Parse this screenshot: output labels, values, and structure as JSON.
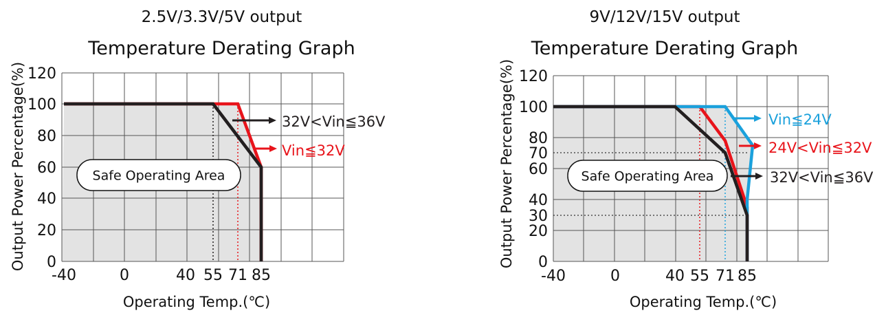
{
  "chart_data": [
    {
      "type": "line",
      "title": "2.5V/3.3V/5V output",
      "subtitle": "Temperature Derating Graph",
      "xlabel": "Operating Temp.(℃)",
      "ylabel": "Output Power Percentage(%)",
      "xlim": [
        -40,
        120
      ],
      "ylim": [
        0,
        120
      ],
      "x_ticks": [
        -40,
        0,
        40,
        55,
        71,
        85
      ],
      "x_tick_labels": [
        "-40",
        "0",
        "40",
        "55",
        "71",
        "85"
      ],
      "y_ticks": [
        0,
        20,
        40,
        60,
        80,
        100,
        120
      ],
      "y_tick_labels": [
        "0",
        "20",
        "40",
        "60",
        "80",
        "100",
        "120"
      ],
      "grid": true,
      "area_label": "Safe Operating Area",
      "series": [
        {
          "name": "Vin≦32V",
          "color": "#e8141b",
          "points": [
            [
              -40,
              100
            ],
            [
              71,
              100
            ],
            [
              85,
              60
            ],
            [
              85,
              0
            ]
          ]
        },
        {
          "name": "32V<Vin≦36V",
          "color": "#231f20",
          "points": [
            [
              -40,
              100
            ],
            [
              55,
              100
            ],
            [
              85,
              60
            ],
            [
              85,
              0
            ]
          ]
        }
      ]
    },
    {
      "type": "line",
      "title": "9V/12V/15V output",
      "subtitle": "Temperature Derating Graph",
      "xlabel": "Operating Temp.(℃)",
      "ylabel": "Output Power Percentage(%)",
      "xlim": [
        -40,
        120
      ],
      "ylim": [
        0,
        120
      ],
      "x_ticks": [
        -40,
        0,
        40,
        55,
        71,
        85
      ],
      "x_tick_labels": [
        "-40",
        "0",
        "40",
        "55",
        "71",
        "85"
      ],
      "y_ticks": [
        0,
        20,
        30,
        40,
        60,
        70,
        80,
        100,
        120
      ],
      "y_tick_labels": [
        "0",
        "20",
        "30",
        "40",
        "60",
        "70",
        "80",
        "100",
        "120"
      ],
      "grid": true,
      "area_label": "Safe Operating Area",
      "series": [
        {
          "name": "Vin≦24V",
          "color": "#1ba1dc",
          "points": [
            [
              -40,
              100
            ],
            [
              71,
              100
            ],
            [
              76,
              75
            ],
            [
              85,
              40
            ],
            [
              85,
              0
            ]
          ]
        },
        {
          "name": "24V<Vin≦32V",
          "color": "#e8141b",
          "points": [
            [
              -40,
              100
            ],
            [
              55,
              100
            ],
            [
              71,
              78
            ],
            [
              85,
              35
            ],
            [
              85,
              0
            ]
          ]
        },
        {
          "name": "32V<Vin≦36V",
          "color": "#231f20",
          "points": [
            [
              -40,
              100
            ],
            [
              40,
              100
            ],
            [
              71,
              70
            ],
            [
              85,
              30
            ],
            [
              85,
              0
            ]
          ]
        }
      ]
    }
  ]
}
